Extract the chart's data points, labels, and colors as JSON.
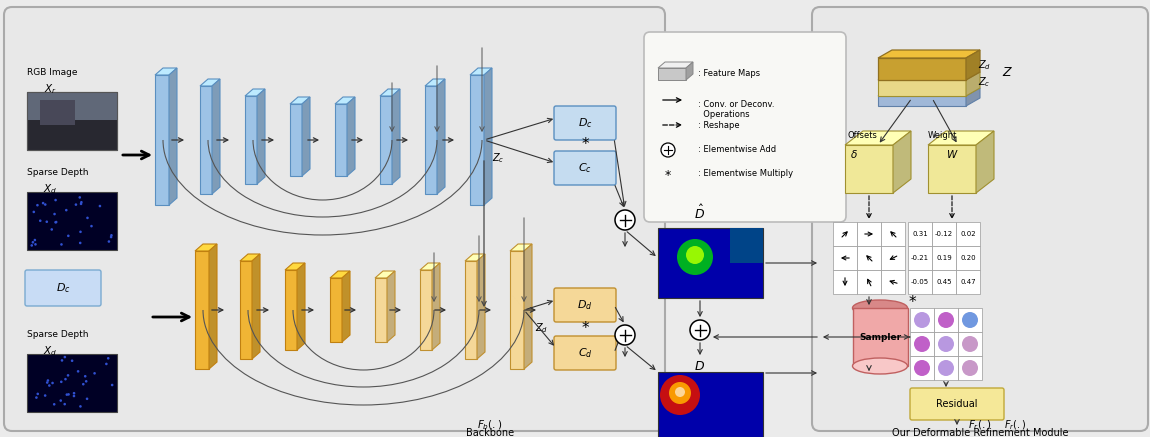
{
  "bg": "#ebebeb",
  "backbone_bg": "#e8e8e8",
  "deform_bg": "#e8e8e8",
  "blue_block": "#9dc3e6",
  "blue_edge": "#5a8fc0",
  "blue_fill": "#c5dcf0",
  "orange_block": "#f0b535",
  "orange_edge": "#c08010",
  "light_orange": "#f5d898",
  "light_orange_edge": "#c09030",
  "dc_fill": "#c8dcf5",
  "dc_edge": "#7aaad0",
  "orange_box_fill": "#f5d898",
  "orange_box_edge": "#c09030",
  "gold_layer1": "#c8a030",
  "gold_layer2": "#e8d080",
  "blue_layer": "#a8c8e8",
  "cube_fill": "#f0e898",
  "cube_edge": "#a09030",
  "sampler_fill": "#f0a8a8",
  "sampler_top": "#f8c8c8",
  "sampler_bot": "#d88888",
  "sampler_edge": "#c06060",
  "residual_fill": "#f5e898",
  "residual_edge": "#c0a838",
  "legend_bg": "#f8f8f5",
  "matrix_values": [
    [
      0.31,
      -0.12,
      0.02
    ],
    [
      -0.21,
      0.19,
      0.2
    ],
    [
      -0.05,
      0.45,
      0.47
    ]
  ],
  "circle_colors": [
    [
      "#b898e0",
      "#c060c8",
      "#7098e0"
    ],
    [
      "#c060c8",
      "#b898e0",
      "#c898c8"
    ],
    [
      "#c060c8",
      "#b898e0",
      "#c898c8"
    ]
  ]
}
